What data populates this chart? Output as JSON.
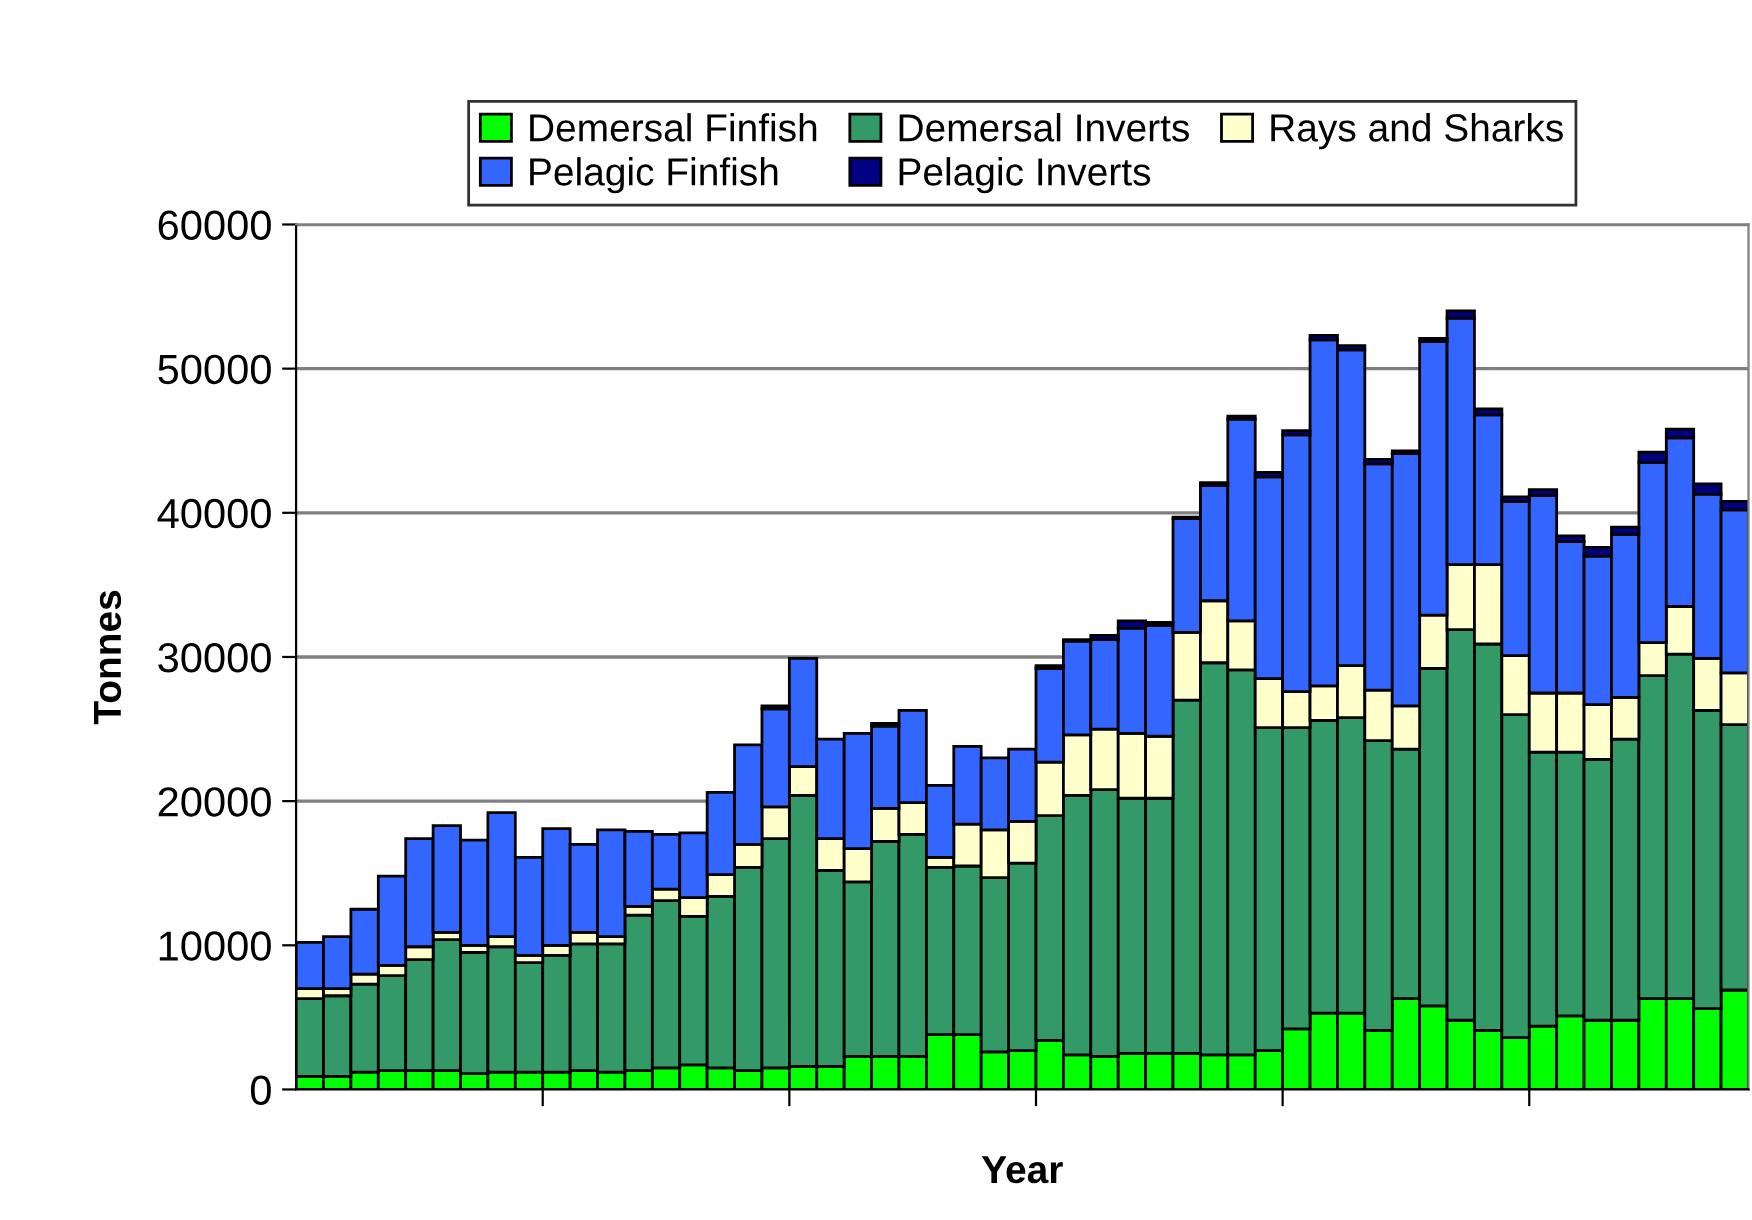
{
  "chart_data": {
    "type": "bar",
    "stacked": true,
    "xlabel": "Year",
    "ylabel": "Tonnes",
    "categories": [
      null,
      null,
      null,
      null,
      null,
      null,
      null,
      null,
      null,
      null,
      null,
      null,
      null,
      null,
      null,
      null,
      null,
      null,
      null,
      null,
      null,
      null,
      null,
      null,
      null,
      null,
      null,
      null,
      null,
      null,
      null,
      null,
      null,
      null,
      null,
      null,
      null,
      null,
      null,
      null,
      null,
      null,
      null,
      null,
      null,
      null,
      null,
      null,
      null,
      null,
      null,
      null,
      null
    ],
    "series": [
      {
        "name": "Demersal Finfish",
        "color": "#00ff00",
        "values": [
          900,
          900,
          1200,
          1300,
          1300,
          1300,
          1100,
          1200,
          1200,
          1200,
          1300,
          1200,
          1300,
          1500,
          1700,
          1500,
          1300,
          1500,
          1600,
          1600,
          2300,
          2300,
          2300,
          3800,
          3800,
          2600,
          2700,
          3400,
          2400,
          2300,
          2500,
          2500,
          2500,
          2400,
          2400,
          2700,
          4200,
          5300,
          5300,
          4100,
          6300,
          5800,
          4800,
          4100,
          3600,
          4400,
          5100,
          4800,
          4800,
          6300,
          6300,
          5600,
          6900
        ]
      },
      {
        "name": "Demersal Inverts",
        "color": "#339966",
        "values": [
          5400,
          5600,
          6100,
          6600,
          7700,
          9100,
          8400,
          8700,
          7600,
          8100,
          8800,
          8900,
          10800,
          11600,
          10300,
          11900,
          14100,
          15900,
          18800,
          13600,
          12100,
          14900,
          15400,
          11600,
          11700,
          12100,
          13000,
          15600,
          18000,
          18500,
          17700,
          17700,
          24500,
          27200,
          26700,
          22400,
          20900,
          20300,
          20500,
          20100,
          17300,
          23400,
          27100,
          26800,
          22400,
          19000,
          18300,
          18100,
          19500,
          22400,
          23900,
          20700,
          18400
        ]
      },
      {
        "name": "Rays and Sharks",
        "color": "#ffffcc",
        "values": [
          700,
          500,
          700,
          700,
          900,
          500,
          500,
          700,
          500,
          700,
          800,
          500,
          600,
          800,
          1300,
          1500,
          1600,
          2200,
          2000,
          2200,
          2300,
          2300,
          2200,
          700,
          2900,
          3300,
          2900,
          3700,
          4200,
          4200,
          4500,
          4300,
          4700,
          4300,
          3400,
          3400,
          2500,
          2400,
          3600,
          3500,
          3000,
          3700,
          4500,
          5500,
          4100,
          4100,
          4100,
          3800,
          2900,
          2300,
          3300,
          3600,
          3600
        ]
      },
      {
        "name": "Pelagic Finfish",
        "color": "#3366ff",
        "values": [
          3200,
          3600,
          4500,
          6200,
          7500,
          7400,
          7300,
          8600,
          6800,
          8100,
          6100,
          7400,
          5200,
          3800,
          4500,
          5700,
          6900,
          6800,
          7500,
          6900,
          8000,
          5700,
          6400,
          5000,
          5400,
          5000,
          5000,
          6500,
          6500,
          6200,
          7300,
          7700,
          7900,
          8000,
          14000,
          14000,
          17800,
          24000,
          21900,
          15700,
          17500,
          19000,
          17100,
          10400,
          10700,
          13700,
          10500,
          10300,
          11300,
          12500,
          11700,
          11400,
          11300
        ]
      },
      {
        "name": "Pelagic Inverts",
        "color": "#000080",
        "values": [
          0,
          0,
          0,
          0,
          0,
          0,
          0,
          0,
          0,
          0,
          0,
          0,
          0,
          0,
          0,
          0,
          0,
          200,
          0,
          0,
          0,
          200,
          0,
          0,
          0,
          0,
          0,
          200,
          100,
          300,
          500,
          200,
          100,
          200,
          200,
          300,
          300,
          300,
          300,
          300,
          200,
          200,
          500,
          400,
          300,
          400,
          400,
          600,
          500,
          700,
          600,
          700,
          600
        ]
      }
    ],
    "ylim": [
      0,
      60000
    ],
    "yticks": [
      0,
      10000,
      20000,
      30000,
      40000,
      50000,
      60000
    ],
    "grid": "y",
    "legend": "top"
  }
}
